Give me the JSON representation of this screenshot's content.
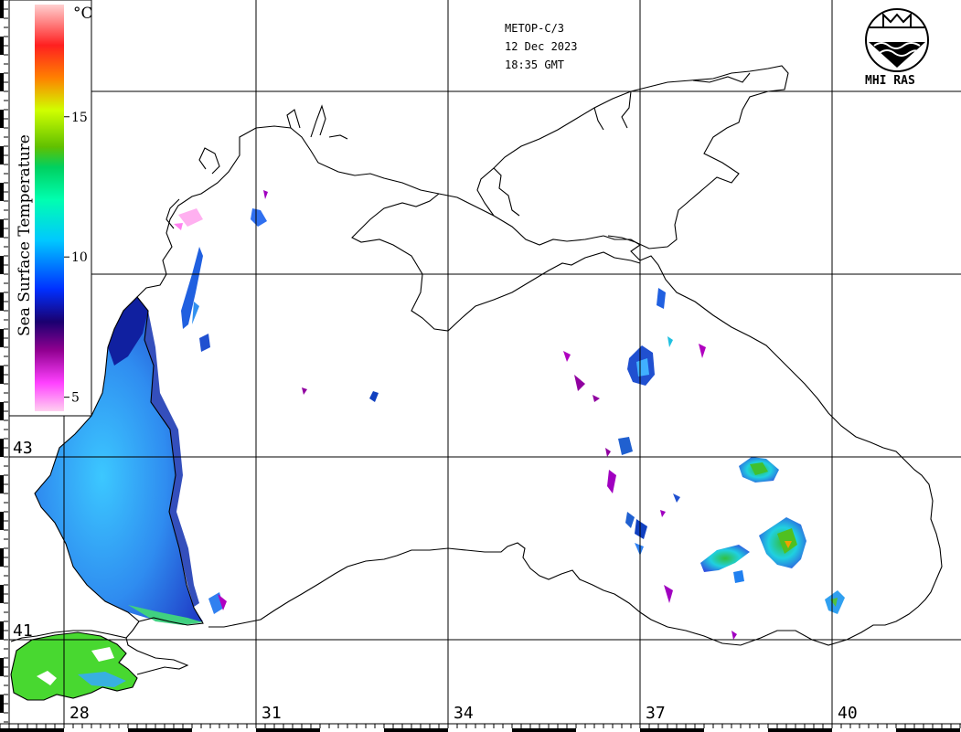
{
  "header": {
    "satellite": "METOP-C/3",
    "date": "12 Dec 2023",
    "time": "18:35 GMT"
  },
  "logo": {
    "label": "MHI RAS",
    "icon": "mhi-ras-emblem-icon"
  },
  "colorbar": {
    "title": "Sea Surface Temperature",
    "unit": "°C",
    "tick_labels": [
      "15",
      "10",
      "5"
    ],
    "tick_values": [
      15,
      10,
      5
    ],
    "range": [
      4.5,
      19
    ],
    "colors": [
      "#ffd0f0",
      "#ff40ff",
      "#900090",
      "#1a0070",
      "#0030ff",
      "#00c8ff",
      "#00ffb0",
      "#00d060",
      "#60c000",
      "#d0ff00",
      "#ff8000",
      "#ff2020",
      "#ffd0d0"
    ]
  },
  "axes": {
    "longitude_labels": [
      "28",
      "31",
      "34",
      "37",
      "40"
    ],
    "longitude_values": [
      28,
      31,
      34,
      37,
      40
    ],
    "latitude_labels": [
      "43",
      "41"
    ],
    "latitude_values": [
      43,
      41
    ]
  },
  "colors": {
    "coast": "#000000",
    "grid": "#000000"
  }
}
